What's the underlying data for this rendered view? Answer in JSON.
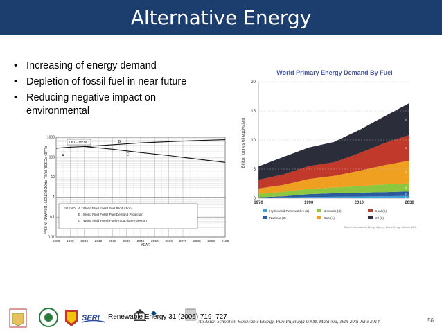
{
  "slide": {
    "title": "Alternative Energy",
    "bullets": [
      "Increasing of energy demand",
      "Depletion of fossil fuel in near future",
      "Reducing negative impact on environmental"
    ],
    "citation": "Renewable Energy 31 (2006) 719–727",
    "footer": "7th Asian School on Renewable Energy, Puri Pujangga UKM, Malaysia, 16th-20th June 2014",
    "page_number": "56",
    "accent_color": "#1b3e6e"
  },
  "chart_data": [
    {
      "type": "line",
      "ylabel": "FLUID FOSSIL FUEL PRODUCTION / DEMAND IN EJ/yr",
      "xlabel": "YEAR",
      "x_ticks": [
        "1980",
        "1990",
        "2000",
        "2010",
        "2020",
        "2030",
        "2040",
        "2050",
        "2060",
        "2070",
        "2080",
        "2090",
        "2100"
      ],
      "y_ticks": [
        "1000",
        "100",
        "10",
        "1",
        "0.1",
        "0.01"
      ],
      "scale": "log",
      "annotation": "1 EJ = 10^18 J",
      "legend_title": "LEGEND",
      "legend": [
        "A : World Fluid Fossil Fuel Production",
        "B : World Fluid Fossil Fuel Demand Projection",
        "C : World Fluid Fossil Fuel Production Projection"
      ],
      "series": [
        {
          "name": "A",
          "x": [
            1980,
            1990,
            2000
          ],
          "y": [
            280,
            320,
            340
          ]
        },
        {
          "name": "B",
          "x": [
            2000,
            2020,
            2040,
            2060,
            2080,
            2100
          ],
          "y": [
            340,
            420,
            520,
            600,
            680,
            750
          ]
        },
        {
          "name": "C",
          "x": [
            2000,
            2020,
            2040,
            2060,
            2080,
            2100
          ],
          "y": [
            340,
            250,
            170,
            120,
            80,
            55
          ]
        }
      ],
      "point_labels": [
        "A",
        "B",
        "C"
      ]
    },
    {
      "type": "area",
      "title": "World Primary Energy Demand By Fuel",
      "ylabel": "Billion tonnes oil equivalent",
      "x_ticks": [
        "1970",
        "1990",
        "2010",
        "2030"
      ],
      "y_ticks": [
        "0",
        "5",
        "10",
        "15",
        "20"
      ],
      "ylim": [
        0,
        20
      ],
      "legend": [
        {
          "label": "Hydro and Renewables (1)",
          "color": "#3fa0d8"
        },
        {
          "label": "Biomass (3)",
          "color": "#8dc63f"
        },
        {
          "label": "Coal (5)",
          "color": "#c0392b"
        },
        {
          "label": "Nuclear (2)",
          "color": "#2c5aa0"
        },
        {
          "label": "Gas (4)",
          "color": "#f0a020"
        },
        {
          "label": "Oil (6)",
          "color": "#2b2d3a"
        }
      ],
      "series_labels": [
        "1",
        "2",
        "3",
        "4",
        "5",
        "6"
      ],
      "source": "Source: International Energy Agency, World Energy Outlook 2006",
      "x": [
        1970,
        1980,
        1990,
        2000,
        2010,
        2020,
        2030
      ],
      "stacked": [
        {
          "name": "1",
          "values": [
            0.1,
            0.15,
            0.2,
            0.25,
            0.3,
            0.35,
            0.4
          ]
        },
        {
          "name": "2",
          "values": [
            0.05,
            0.2,
            0.5,
            0.6,
            0.65,
            0.7,
            0.75
          ]
        },
        {
          "name": "3",
          "values": [
            0.6,
            0.75,
            0.9,
            1.0,
            1.15,
            1.3,
            1.4
          ]
        },
        {
          "name": "4",
          "values": [
            0.9,
            1.2,
            1.7,
            2.0,
            2.6,
            3.3,
            3.9
          ]
        },
        {
          "name": "5",
          "values": [
            1.5,
            1.8,
            2.2,
            2.3,
            3.0,
            3.8,
            4.4
          ]
        },
        {
          "name": "6",
          "values": [
            2.3,
            3.0,
            3.2,
            3.5,
            4.0,
            4.6,
            5.5
          ]
        }
      ]
    }
  ]
}
